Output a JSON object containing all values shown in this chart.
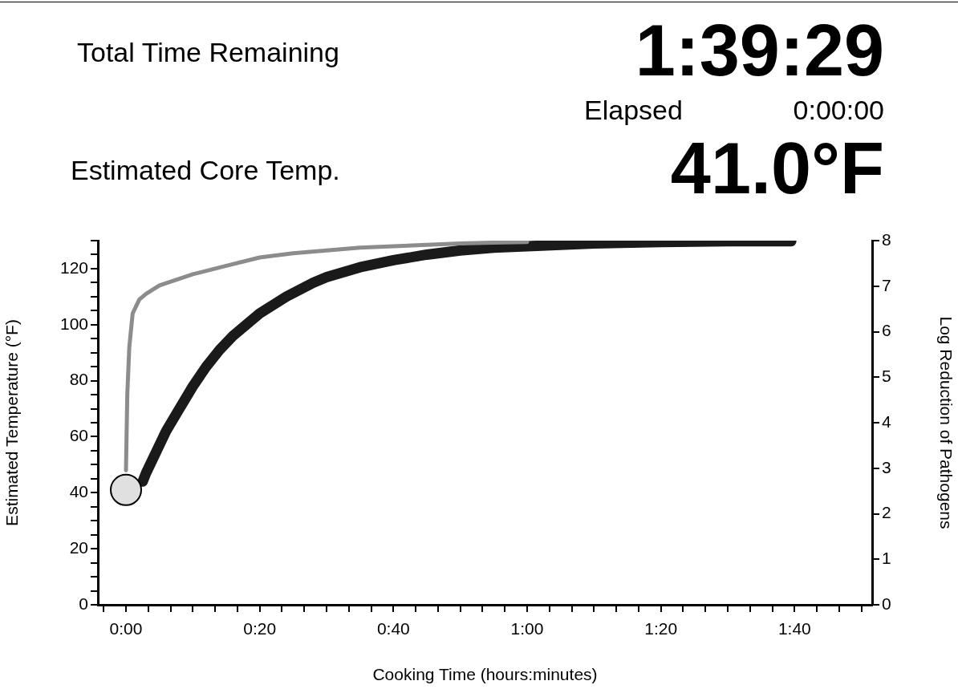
{
  "chart_data": {
    "type": "line",
    "xlabel": "Cooking Time (hours:minutes)",
    "ylabel": "Estimated Temperature (°F)",
    "y2label": "Log Reduction of Pathogens",
    "annotations": [
      "Total Time Remaining",
      "1:39:29",
      "Elapsed",
      "0:00:00",
      "Estimated Core Temp.",
      "41.0°F"
    ],
    "xlim": [
      -0.07,
      1.86
    ],
    "xticks": [
      {
        "value": -0.0556,
        "label": null
      },
      {
        "value": 0,
        "label": "0:00"
      },
      {
        "value": 0.0556,
        "label": null
      },
      {
        "value": 0.1111,
        "label": null
      },
      {
        "value": 0.1667,
        "label": null
      },
      {
        "value": 0.2222,
        "label": null
      },
      {
        "value": 0.2778,
        "label": null
      },
      {
        "value": 0.3333,
        "label": "0:20"
      },
      {
        "value": 0.3889,
        "label": null
      },
      {
        "value": 0.4444,
        "label": null
      },
      {
        "value": 0.5,
        "label": null
      },
      {
        "value": 0.5556,
        "label": null
      },
      {
        "value": 0.6111,
        "label": null
      },
      {
        "value": 0.6667,
        "label": "0:40"
      },
      {
        "value": 0.7222,
        "label": null
      },
      {
        "value": 0.7778,
        "label": null
      },
      {
        "value": 0.8333,
        "label": null
      },
      {
        "value": 0.8889,
        "label": null
      },
      {
        "value": 0.9444,
        "label": null
      },
      {
        "value": 1,
        "label": "1:00"
      },
      {
        "value": 1.0556,
        "label": null
      },
      {
        "value": 1.1111,
        "label": null
      },
      {
        "value": 1.1667,
        "label": null
      },
      {
        "value": 1.2222,
        "label": null
      },
      {
        "value": 1.2778,
        "label": null
      },
      {
        "value": 1.3333,
        "label": "1:20"
      },
      {
        "value": 1.3889,
        "label": null
      },
      {
        "value": 1.4444,
        "label": null
      },
      {
        "value": 1.5,
        "label": null
      },
      {
        "value": 1.5556,
        "label": null
      },
      {
        "value": 1.6111,
        "label": null
      },
      {
        "value": 1.6667,
        "label": "1:40"
      },
      {
        "value": 1.7222,
        "label": null
      },
      {
        "value": 1.7778,
        "label": null
      },
      {
        "value": 1.8333,
        "label": null
      }
    ],
    "ylim": [
      0,
      130
    ],
    "yticks": [
      0,
      {
        "value": 5,
        "label": null
      },
      {
        "value": 10,
        "label": null
      },
      {
        "value": 15,
        "label": null
      },
      20,
      {
        "value": 25,
        "label": null
      },
      {
        "value": 30,
        "label": null
      },
      {
        "value": 35,
        "label": null
      },
      40,
      {
        "value": 45,
        "label": null
      },
      {
        "value": 50,
        "label": null
      },
      {
        "value": 55,
        "label": null
      },
      60,
      {
        "value": 65,
        "label": null
      },
      {
        "value": 70,
        "label": null
      },
      {
        "value": 75,
        "label": null
      },
      80,
      {
        "value": 85,
        "label": null
      },
      {
        "value": 90,
        "label": null
      },
      {
        "value": 95,
        "label": null
      },
      100,
      {
        "value": 105,
        "label": null
      },
      {
        "value": 110,
        "label": null
      },
      {
        "value": 115,
        "label": null
      },
      120,
      {
        "value": 125,
        "label": null
      },
      {
        "value": 130,
        "label": null
      }
    ],
    "y2lim": [
      0,
      8
    ],
    "y2ticks": [
      0,
      1,
      2,
      3,
      4,
      5,
      6,
      7,
      8
    ],
    "grid": false,
    "legend": false,
    "series": [
      {
        "color": "#8c8c8c",
        "marker": "none",
        "x": [
          0,
          0.0033,
          0.0083,
          0.0167,
          0.0333,
          0.05,
          0.0833,
          0.1667,
          0.25,
          0.3333,
          0.4167,
          0.5,
          0.5833,
          0.6667,
          0.75,
          0.8333,
          0.9167,
          1
        ],
        "values": [
          48,
          75,
          92,
          104,
          109,
          111,
          114,
          118,
          121,
          124,
          125.5,
          126.5,
          127.5,
          128,
          128.5,
          129,
          129.3,
          129.5
        ]
      },
      {
        "color": "#1a1a1a",
        "marker": "none",
        "x": [
          0.0417,
          0.05,
          0.0667,
          0.0833,
          0.1,
          0.1333,
          0.1667,
          0.2,
          0.2333,
          0.2667,
          0.3,
          0.3333,
          0.4,
          0.4667,
          0.5,
          0.5833,
          0.6667,
          0.75,
          0.8333,
          0.9167,
          1,
          1.1667,
          1.3333,
          1.5,
          1.6583
        ],
        "values": [
          44,
          47,
          52,
          57,
          62,
          70,
          78,
          85,
          91,
          96,
          100,
          104,
          110,
          115,
          117,
          120.5,
          123,
          125,
          126.5,
          127.5,
          128,
          129,
          129.5,
          129.8,
          129.8
        ]
      },
      {
        "type": "scatter",
        "color": "#e0e0e0",
        "marker": "circle",
        "x": [
          0
        ],
        "values": [
          41
        ]
      }
    ]
  }
}
